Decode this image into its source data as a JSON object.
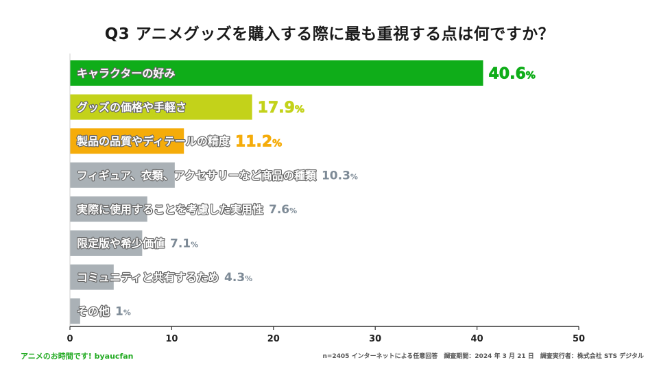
{
  "header": {
    "title": "Q3 アニメグッズを購入する際に最も重視する点は何ですか？"
  },
  "colors": {
    "green": "#0fad19",
    "yellow_green": "#c3d21a",
    "orange": "#f5ac0a",
    "gray_bar": "#aab1b6",
    "gray_text": "#7d8a96"
  },
  "chart_data": {
    "type": "bar",
    "orientation": "horizontal",
    "title": "Q3 アニメグッズを購入する際に最も重視する点は何ですか？",
    "categories": [
      "キャラクターの好み",
      "グッズの価格や手軽さ",
      "製品の品質やディテールの精度",
      "フィギュア、衣類、アクセサリーなど商品の種類",
      "実際に使用することを考慮した実用性",
      "限定版や希少価値",
      "コミュニティと共有するため",
      "その他"
    ],
    "values": [
      40.6,
      17.9,
      11.2,
      10.3,
      7.6,
      7.1,
      4.3,
      1
    ],
    "value_labels": [
      "40.6",
      "17.9",
      "11.2",
      "10.3",
      "7.6",
      "7.1",
      "4.3",
      "1"
    ],
    "unit": "%",
    "bar_colors": [
      "#0fad19",
      "#c3d21a",
      "#f5ac0a",
      "#aab1b6",
      "#aab1b6",
      "#aab1b6",
      "#aab1b6",
      "#aab1b6"
    ],
    "label_colors": [
      "#0fad19",
      "#c3d21a",
      "#f5ac0a",
      "#7d8a96",
      "#7d8a96",
      "#7d8a96",
      "#7d8a96",
      "#7d8a96"
    ],
    "xlim": [
      0,
      50
    ],
    "xticks": [
      0,
      10,
      20,
      30,
      40,
      50
    ],
    "xlabel": "",
    "ylabel": "",
    "grid": false
  },
  "footer": {
    "brand": "アニメのお時間です! byaucfan",
    "note": "n=2405 インターネットによる任意回答　調査期間：2024 年 3 月 21 日　調査実行者：株式会社 STS デジタル"
  }
}
